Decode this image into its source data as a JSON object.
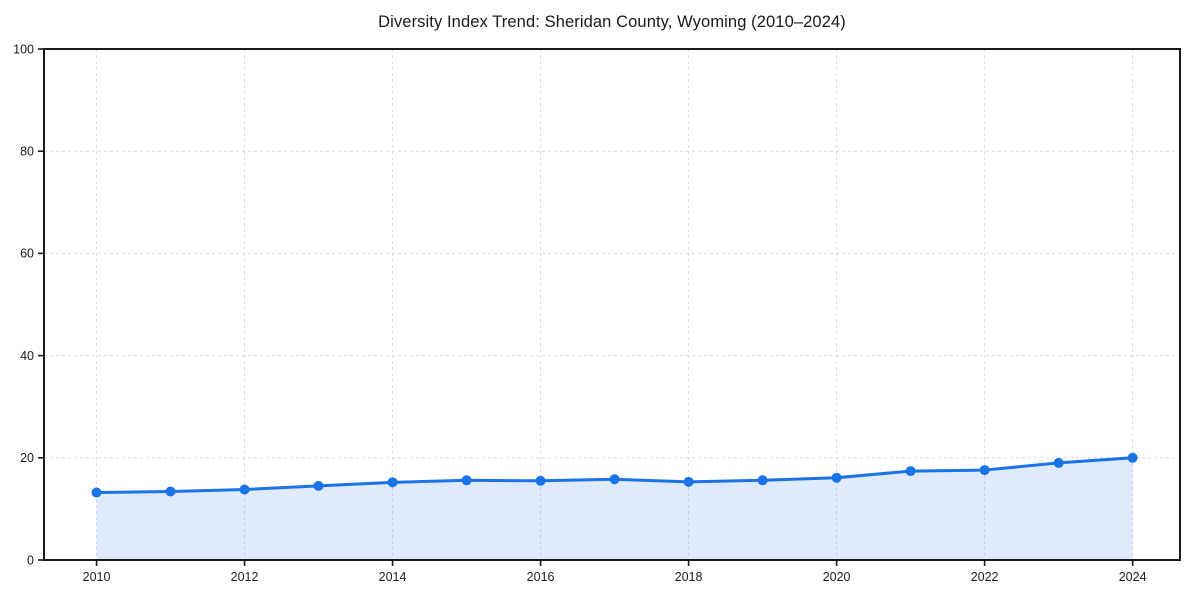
{
  "chart_data": {
    "type": "line",
    "title": "Diversity Index Trend: Sheridan County, Wyoming (2010–2024)",
    "xlabel": "",
    "ylabel": "",
    "x": [
      2010,
      2011,
      2012,
      2013,
      2014,
      2015,
      2016,
      2017,
      2018,
      2019,
      2020,
      2021,
      2022,
      2023,
      2024
    ],
    "series": [
      {
        "name": "Diversity Index",
        "values": [
          13.2,
          13.4,
          13.8,
          14.5,
          15.2,
          15.6,
          15.5,
          15.8,
          15.3,
          15.6,
          16.1,
          17.4,
          17.6,
          19.0,
          20.0
        ]
      }
    ],
    "xticks": [
      2010,
      2012,
      2014,
      2016,
      2018,
      2020,
      2022,
      2024
    ],
    "yticks": [
      0,
      20,
      40,
      60,
      80,
      100
    ],
    "xlim": [
      2009.29,
      2024.64
    ],
    "ylim": [
      0,
      100
    ],
    "grid": true,
    "grid_style": "dashed",
    "legend": false,
    "area_fill": true,
    "marker": "circle",
    "colors": {
      "line": "#1a73e8",
      "marker": "#1a73e8",
      "fill": "rgba(26,115,232,0.14)",
      "grid": "#dcdcdc",
      "spine": "#1a1a1a",
      "tick_label": "#1d1d1d",
      "title": "#1a1a1a",
      "background": "#ffffff"
    }
  }
}
